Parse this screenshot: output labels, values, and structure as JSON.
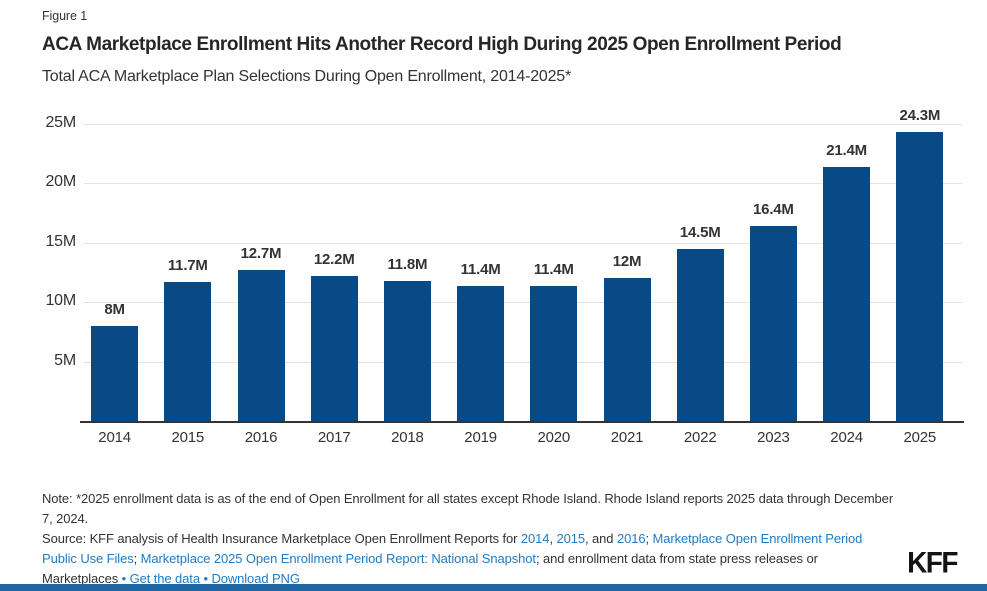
{
  "figure_label": "Figure 1",
  "title": "ACA Marketplace Enrollment Hits Another Record High During 2025 Open Enrollment Period",
  "subtitle": "Total ACA Marketplace Plan Selections During Open Enrollment, 2014-2025*",
  "chart_data": {
    "type": "bar",
    "title": "ACA Marketplace Enrollment Hits Another Record High During 2025 Open Enrollment Period",
    "subtitle": "Total ACA Marketplace Plan Selections During Open Enrollment, 2014-2025*",
    "categories": [
      "2014",
      "2015",
      "2016",
      "2017",
      "2018",
      "2019",
      "2020",
      "2021",
      "2022",
      "2023",
      "2024",
      "2025"
    ],
    "values": [
      8,
      11.7,
      12.7,
      12.2,
      11.8,
      11.4,
      11.4,
      12,
      14.5,
      16.4,
      21.4,
      24.3
    ],
    "value_labels": [
      "8M",
      "11.7M",
      "12.7M",
      "12.2M",
      "11.8M",
      "11.4M",
      "11.4M",
      "12M",
      "14.5M",
      "16.4M",
      "21.4M",
      "24.3M"
    ],
    "y_ticks": [
      {
        "value": 5,
        "label": "5M"
      },
      {
        "value": 10,
        "label": "10M"
      },
      {
        "value": 15,
        "label": "15M"
      },
      {
        "value": 20,
        "label": "20M"
      },
      {
        "value": 25,
        "label": "25M"
      }
    ],
    "ylim": [
      0,
      25
    ],
    "xlabel": "",
    "ylabel": "",
    "grid": true,
    "legend": "none",
    "bar_color": "#084a86"
  },
  "note": "Note: *2025 enrollment data is as of the end of Open Enrollment for all states except Rhode Island. Rhode Island reports 2025 data through December 7, 2024.",
  "source_segments": [
    {
      "type": "text",
      "text": "Source: KFF analysis of Health Insurance Marketplace Open Enrollment Reports for "
    },
    {
      "type": "link",
      "text": "2014"
    },
    {
      "type": "text",
      "text": ", "
    },
    {
      "type": "link",
      "text": "2015"
    },
    {
      "type": "text",
      "text": ", and "
    },
    {
      "type": "link",
      "text": "2016"
    },
    {
      "type": "text",
      "text": "; "
    },
    {
      "type": "link",
      "text": "Marketplace Open Enrollment Period Public Use Files"
    },
    {
      "type": "text",
      "text": "; "
    },
    {
      "type": "link",
      "text": "Marketplace 2025 Open Enrollment Period Report: National Snapshot"
    },
    {
      "type": "text",
      "text": "; and enrollment data from state press releases or Marketplaces "
    },
    {
      "type": "separator",
      "text": "• "
    },
    {
      "type": "link",
      "text": "Get the data"
    },
    {
      "type": "separator",
      "text": " • "
    },
    {
      "type": "link",
      "text": "Download PNG"
    }
  ],
  "branding": {
    "logo": "KFF",
    "accent_color": "#1f66a3",
    "link_color": "#1e7bc4",
    "bar_color": "#084a86"
  }
}
